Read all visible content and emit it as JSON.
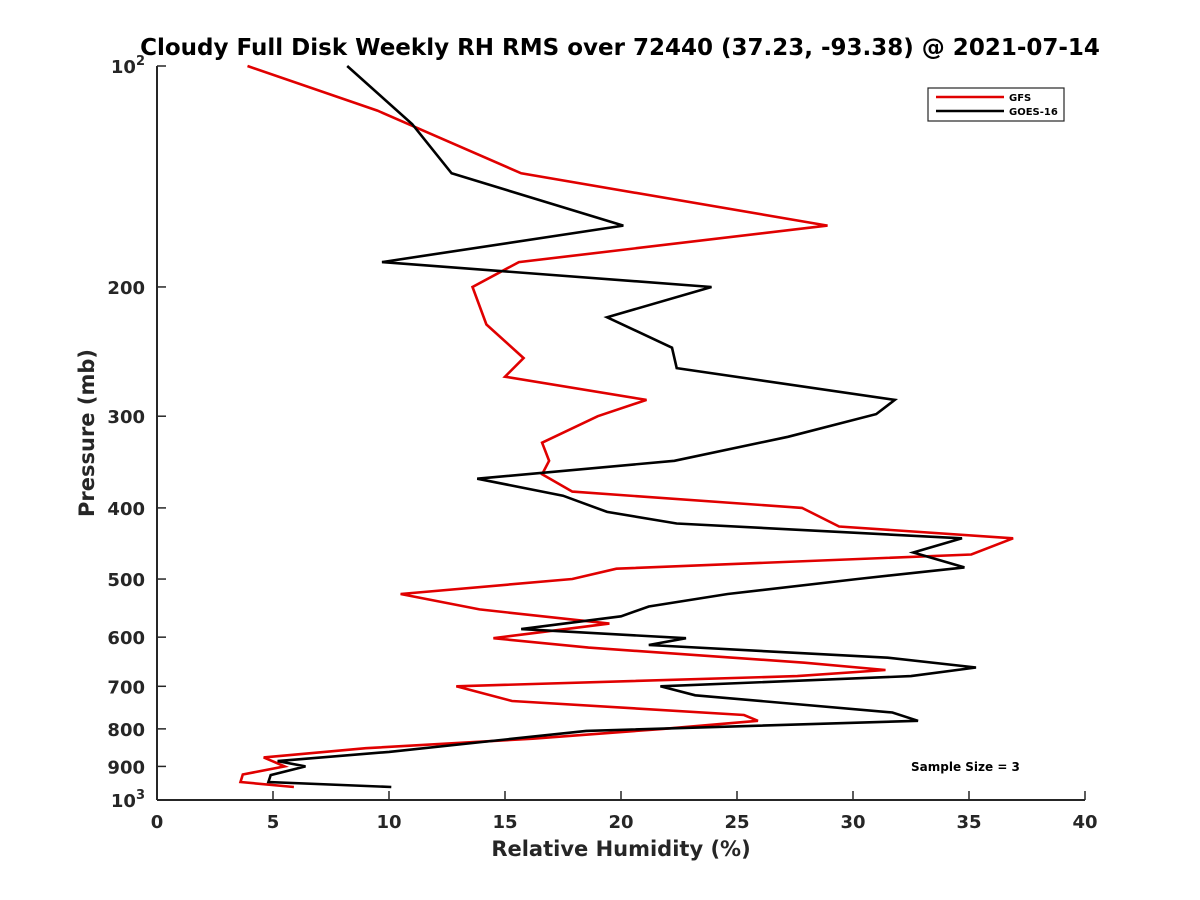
{
  "chart_data": {
    "type": "line",
    "title": "Cloudy Full Disk Weekly RH RMS over 72440 (37.23, -93.38) @ 2021-07-14",
    "xlabel": "Relative Humidity (%)",
    "ylabel": "Pressure (mb)",
    "xlim": [
      0,
      40
    ],
    "ylim": [
      100,
      1000
    ],
    "y_scale": "log",
    "y_reversed": true,
    "grid": false,
    "x_ticks": [
      0,
      5,
      10,
      15,
      20,
      25,
      30,
      35,
      40
    ],
    "y_ticks": [
      {
        "value": 100,
        "label": "10",
        "sup": "2"
      },
      {
        "value": 200,
        "label": "200"
      },
      {
        "value": 300,
        "label": "300"
      },
      {
        "value": 400,
        "label": "400"
      },
      {
        "value": 500,
        "label": "500"
      },
      {
        "value": 600,
        "label": "600"
      },
      {
        "value": 700,
        "label": "700"
      },
      {
        "value": 800,
        "label": "800"
      },
      {
        "value": 900,
        "label": "900"
      },
      {
        "value": 1000,
        "label": "10",
        "sup": "3"
      }
    ],
    "legend_position": "top-right",
    "annotation": "Sample Size = 3",
    "series": [
      {
        "name": "GFS",
        "color": "#e00000",
        "points": [
          [
            3.9,
            100
          ],
          [
            9.5,
            115
          ],
          [
            15.7,
            140
          ],
          [
            28.9,
            165
          ],
          [
            15.6,
            185
          ],
          [
            13.6,
            200
          ],
          [
            14.2,
            225
          ],
          [
            15.8,
            250
          ],
          [
            15.0,
            265
          ],
          [
            21.1,
            285
          ],
          [
            19.0,
            300
          ],
          [
            16.6,
            326
          ],
          [
            16.9,
            345
          ],
          [
            16.6,
            360
          ],
          [
            17.9,
            380
          ],
          [
            27.8,
            400
          ],
          [
            29.4,
            424
          ],
          [
            36.9,
            440
          ],
          [
            35.1,
            463
          ],
          [
            19.8,
            484
          ],
          [
            17.9,
            500
          ],
          [
            10.5,
            524
          ],
          [
            13.9,
            550
          ],
          [
            19.5,
            575
          ],
          [
            14.5,
            602
          ],
          [
            18.6,
            620
          ],
          [
            27.9,
            650
          ],
          [
            31.4,
            665
          ],
          [
            27.6,
            678
          ],
          [
            12.9,
            700
          ],
          [
            15.3,
            733
          ],
          [
            25.3,
            766
          ],
          [
            25.9,
            780
          ],
          [
            21.8,
            800
          ],
          [
            16.2,
            825
          ],
          [
            9.0,
            850
          ],
          [
            4.6,
            875
          ],
          [
            5.5,
            900
          ],
          [
            3.7,
            923
          ],
          [
            3.6,
            945
          ],
          [
            5.9,
            960
          ]
        ]
      },
      {
        "name": "GOES-16",
        "color": "#000000",
        "points": [
          [
            8.2,
            100
          ],
          [
            11.0,
            120
          ],
          [
            12.7,
            140
          ],
          [
            20.1,
            165
          ],
          [
            9.7,
            185
          ],
          [
            23.9,
            200
          ],
          [
            19.4,
            220
          ],
          [
            22.2,
            242
          ],
          [
            22.4,
            258
          ],
          [
            31.8,
            285
          ],
          [
            31.0,
            298
          ],
          [
            27.2,
            320
          ],
          [
            22.3,
            345
          ],
          [
            13.8,
            365
          ],
          [
            17.5,
            385
          ],
          [
            19.4,
            405
          ],
          [
            22.4,
            420
          ],
          [
            34.7,
            440
          ],
          [
            32.6,
            460
          ],
          [
            34.8,
            482
          ],
          [
            30.2,
            500
          ],
          [
            24.6,
            524
          ],
          [
            21.2,
            545
          ],
          [
            20.0,
            562
          ],
          [
            15.7,
            585
          ],
          [
            22.8,
            602
          ],
          [
            21.2,
            615
          ],
          [
            31.5,
            640
          ],
          [
            35.3,
            660
          ],
          [
            32.5,
            678
          ],
          [
            21.7,
            700
          ],
          [
            23.2,
            720
          ],
          [
            31.7,
            760
          ],
          [
            32.8,
            780
          ],
          [
            18.5,
            805
          ],
          [
            10.0,
            860
          ],
          [
            5.2,
            885
          ],
          [
            6.4,
            900
          ],
          [
            4.9,
            925
          ],
          [
            4.8,
            945
          ],
          [
            10.1,
            960
          ]
        ]
      }
    ]
  }
}
